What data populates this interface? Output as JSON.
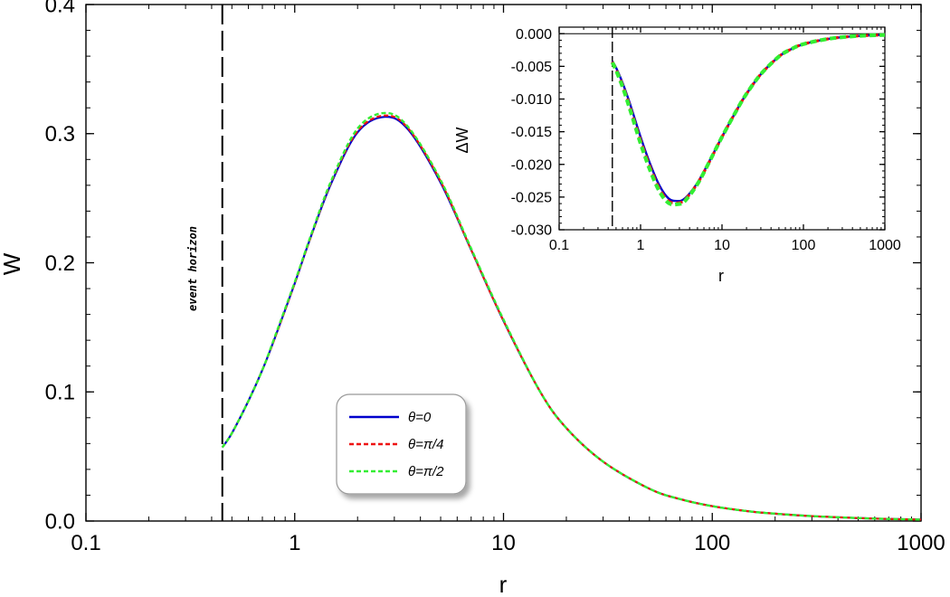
{
  "chart_data": [
    {
      "type": "line",
      "xlabel": "r",
      "ylabel": "W",
      "xscale": "log",
      "xlim": [
        0.1,
        1000
      ],
      "ylim": [
        0,
        0.4
      ],
      "x_ticks": [
        0.1,
        1,
        10,
        100,
        1000
      ],
      "x_tick_labels": [
        "0.1",
        "1",
        "10",
        "100",
        "1000"
      ],
      "y_ticks": [
        0,
        0.1,
        0.2,
        0.3,
        0.4
      ],
      "y_tick_labels": [
        "0.0",
        "0.1",
        "0.2",
        "0.3",
        "0.4"
      ],
      "grid": false,
      "legend_position": "bottom-center",
      "annotations": [
        {
          "text": "event horizon",
          "x": 0.45
        }
      ],
      "x": [
        0.45,
        0.5,
        0.6,
        0.7,
        0.8,
        1.0,
        1.2,
        1.5,
        2.0,
        2.7,
        3.5,
        5.0,
        7.0,
        10,
        15,
        20,
        30,
        50,
        70,
        100,
        150,
        200,
        300,
        500,
        700,
        1000
      ],
      "series": [
        {
          "name": "θ=0",
          "color": "#0000cc",
          "style": "solid",
          "values": [
            0.057,
            0.068,
            0.093,
            0.117,
            0.141,
            0.184,
            0.221,
            0.262,
            0.301,
            0.313,
            0.303,
            0.262,
            0.21,
            0.155,
            0.1,
            0.072,
            0.046,
            0.025,
            0.017,
            0.0115,
            0.0075,
            0.0057,
            0.0038,
            0.0023,
            0.0016,
            0.0011
          ]
        },
        {
          "name": "θ=π/4",
          "color": "#ee1111",
          "style": "dashed",
          "values": [
            0.057,
            0.068,
            0.093,
            0.117,
            0.141,
            0.184,
            0.221,
            0.263,
            0.302,
            0.314,
            0.304,
            0.263,
            0.21,
            0.155,
            0.1,
            0.072,
            0.046,
            0.025,
            0.017,
            0.0115,
            0.0075,
            0.0057,
            0.0038,
            0.0023,
            0.0016,
            0.0011
          ]
        },
        {
          "name": "θ=π/2",
          "color": "#33ee33",
          "style": "dashed",
          "values": [
            0.057,
            0.068,
            0.093,
            0.117,
            0.142,
            0.185,
            0.222,
            0.264,
            0.304,
            0.316,
            0.305,
            0.264,
            0.211,
            0.156,
            0.1,
            0.072,
            0.046,
            0.025,
            0.017,
            0.0115,
            0.0075,
            0.0057,
            0.0038,
            0.0023,
            0.0016,
            0.0011
          ]
        }
      ]
    },
    {
      "type": "line",
      "xlabel": "r",
      "ylabel": "ΔW",
      "xscale": "log",
      "xlim": [
        0.1,
        1000
      ],
      "ylim": [
        -0.03,
        0.001
      ],
      "x_ticks": [
        0.1,
        1,
        10,
        100,
        1000
      ],
      "x_tick_labels": [
        "0.1",
        "1",
        "10",
        "100",
        "1000"
      ],
      "y_ticks": [
        0,
        -0.005,
        -0.01,
        -0.015,
        -0.02,
        -0.025,
        -0.03
      ],
      "y_tick_labels": [
        "0.000",
        "-0.005",
        "-0.010",
        "-0.015",
        "-0.020",
        "-0.025",
        "-0.030"
      ],
      "grid": false,
      "reference_lines": {
        "vertical_x": 0.45,
        "horizontal_y": 0
      },
      "x": [
        0.45,
        0.5,
        0.6,
        0.7,
        0.8,
        1.0,
        1.3,
        1.7,
        2.2,
        2.8,
        3.5,
        5,
        7,
        10,
        15,
        20,
        30,
        50,
        70,
        100,
        200,
        400,
        700,
        1000
      ],
      "series": [
        {
          "name": "θ=0",
          "color": "#0000cc",
          "style": "solid",
          "values": [
            -0.0042,
            -0.0052,
            -0.0075,
            -0.0098,
            -0.012,
            -0.0158,
            -0.0198,
            -0.0232,
            -0.0252,
            -0.0256,
            -0.0252,
            -0.0228,
            -0.0195,
            -0.0158,
            -0.0118,
            -0.0092,
            -0.0062,
            -0.0035,
            -0.0024,
            -0.0016,
            -0.0008,
            -0.0004,
            -0.00025,
            -0.0002
          ]
        },
        {
          "name": "θ=π/4",
          "color": "#ee1111",
          "style": "dashed",
          "values": [
            -0.0043,
            -0.0054,
            -0.0078,
            -0.0102,
            -0.0125,
            -0.0163,
            -0.0203,
            -0.0237,
            -0.0256,
            -0.0259,
            -0.0254,
            -0.0229,
            -0.0196,
            -0.0158,
            -0.0118,
            -0.0092,
            -0.0062,
            -0.0035,
            -0.0024,
            -0.0016,
            -0.0008,
            -0.0004,
            -0.00025,
            -0.0002
          ]
        },
        {
          "name": "θ=π/2",
          "color": "#33ee33",
          "style": "dashed",
          "values": [
            -0.0044,
            -0.0056,
            -0.0081,
            -0.0106,
            -0.0129,
            -0.0168,
            -0.0208,
            -0.0241,
            -0.0259,
            -0.0261,
            -0.0256,
            -0.023,
            -0.0196,
            -0.0158,
            -0.0118,
            -0.0092,
            -0.0062,
            -0.0035,
            -0.0024,
            -0.0016,
            -0.0008,
            -0.0004,
            -0.00025,
            -0.0002
          ]
        }
      ]
    }
  ]
}
